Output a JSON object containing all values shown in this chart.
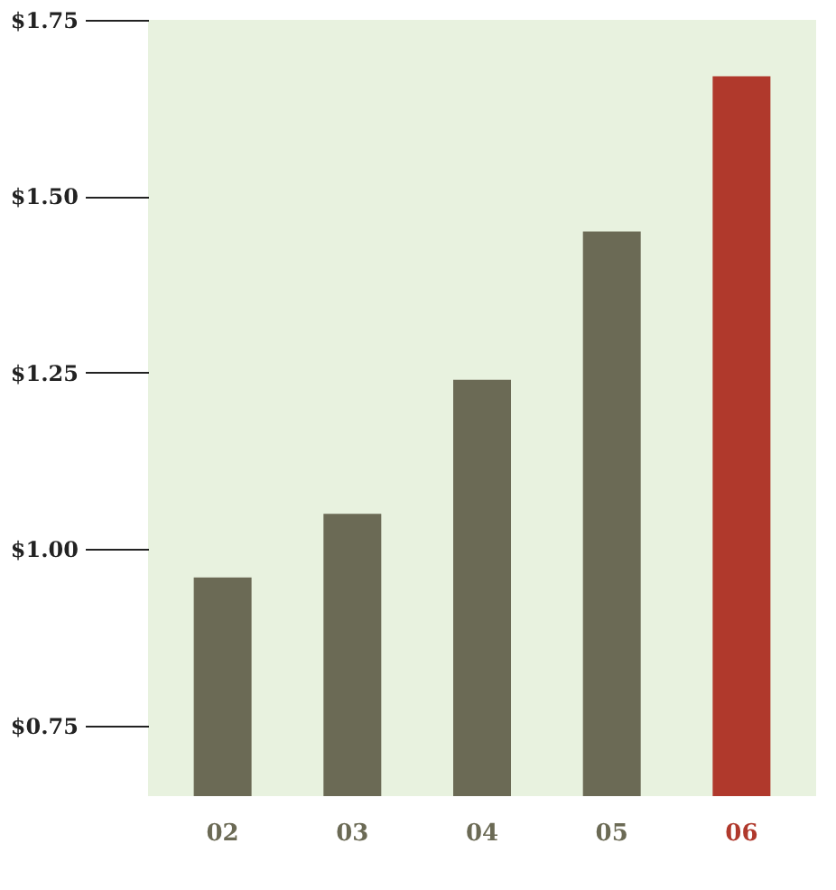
{
  "chart_data": {
    "type": "bar",
    "categories": [
      "02",
      "03",
      "04",
      "05",
      "06"
    ],
    "values": [
      0.96,
      1.05,
      1.24,
      1.45,
      1.67
    ],
    "colors": [
      "#6b6a55",
      "#6b6a55",
      "#6b6a55",
      "#6b6a55",
      "#b0392c"
    ],
    "ylim": [
      0.65,
      1.75
    ],
    "yticks": [
      {
        "value": 0.75,
        "label": "$0.75"
      },
      {
        "value": 1.0,
        "label": "$1.00"
      },
      {
        "value": 1.25,
        "label": "$1.25"
      },
      {
        "value": 1.5,
        "label": "$1.50"
      },
      {
        "value": 1.75,
        "label": "$1.75"
      }
    ],
    "grid": false
  }
}
